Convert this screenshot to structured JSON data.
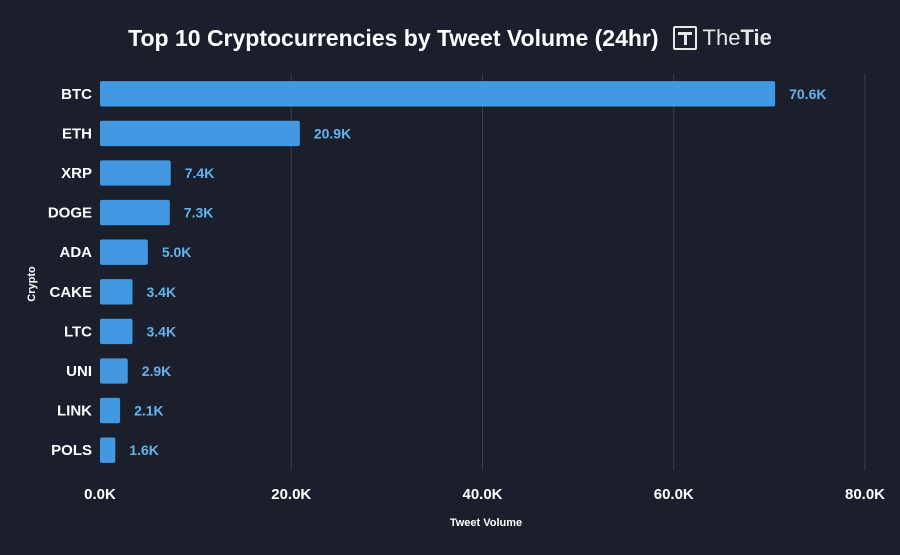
{
  "header": {
    "title": "Top 10 Cryptocurrencies by Tweet Volume (24hr)",
    "brand_light": "The",
    "brand_bold": "Tie"
  },
  "colors": {
    "background": "#1b1f2b",
    "bar": "#4299e1",
    "value_label": "#63b3ed",
    "gridline": "#3a3f4d",
    "text": "#ffffff"
  },
  "chart_data": {
    "type": "bar",
    "orientation": "horizontal",
    "title": "Top 10 Cryptocurrencies by Tweet Volume (24hr)",
    "xlabel": "Tweet Volume",
    "ylabel": "Crypto",
    "categories": [
      "BTC",
      "ETH",
      "XRP",
      "DOGE",
      "ADA",
      "CAKE",
      "LTC",
      "UNI",
      "LINK",
      "POLS"
    ],
    "values": [
      70600,
      20900,
      7400,
      7300,
      5000,
      3400,
      3400,
      2900,
      2100,
      1600
    ],
    "value_labels": [
      "70.6K",
      "20.9K",
      "7.4K",
      "7.3K",
      "5.0K",
      "3.4K",
      "3.4K",
      "2.9K",
      "2.1K",
      "1.6K"
    ],
    "xlim": [
      0,
      80000
    ],
    "xticks": [
      0,
      20000,
      40000,
      60000,
      80000
    ],
    "xtick_labels": [
      "0.0K",
      "20.0K",
      "40.0K",
      "60.0K",
      "80.0K"
    ],
    "grid": true,
    "legend": "none"
  }
}
